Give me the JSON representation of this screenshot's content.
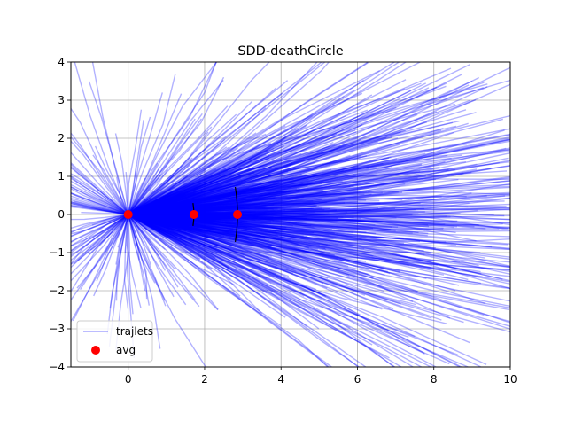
{
  "chart_data": {
    "type": "line",
    "title": "SDD-deathCircle",
    "xlabel": "",
    "ylabel": "",
    "xlim": [
      -1.5,
      10
    ],
    "ylim": [
      -4,
      4
    ],
    "xticks": [
      0,
      2,
      4,
      6,
      8,
      10
    ],
    "yticks": [
      -4,
      -3,
      -2,
      -1,
      0,
      1,
      2,
      3,
      4
    ],
    "grid": true,
    "legend": {
      "position": "lower-left",
      "entries": [
        "trajlets",
        "avg"
      ]
    },
    "colors": {
      "trajlets": "#0000ff",
      "avg": "#ff0000",
      "spread": "#000000"
    },
    "series": [
      {
        "name": "trajlets",
        "kind": "line-bundle",
        "origin": [
          0,
          0
        ],
        "sample_paths": [
          [
            [
              0,
              0
            ],
            [
              0.8,
              0.1
            ],
            [
              1.7,
              0.15
            ],
            [
              2.8,
              0.2
            ]
          ],
          [
            [
              0,
              0
            ],
            [
              1.0,
              0.6
            ],
            [
              2.2,
              1.5
            ],
            [
              3.6,
              2.8
            ]
          ],
          [
            [
              0,
              0
            ],
            [
              1.1,
              -0.5
            ],
            [
              2.3,
              -1.4
            ],
            [
              3.5,
              -2.6
            ]
          ],
          [
            [
              0,
              0
            ],
            [
              2.5,
              0.2
            ],
            [
              5.5,
              0.5
            ],
            [
              9.5,
              1.2
            ]
          ],
          [
            [
              0,
              0
            ],
            [
              2.8,
              -0.3
            ],
            [
              6.0,
              -0.8
            ],
            [
              9.8,
              -1.7
            ]
          ],
          [
            [
              0,
              0
            ],
            [
              -0.5,
              1.2
            ],
            [
              -1.0,
              2.6
            ],
            [
              -1.4,
              4.0
            ]
          ],
          [
            [
              0,
              0
            ],
            [
              -0.6,
              -0.4
            ],
            [
              -1.2,
              -0.9
            ],
            [
              -1.5,
              -1.3
            ]
          ],
          [
            [
              0,
              0
            ],
            [
              0.9,
              1.2
            ],
            [
              1.9,
              2.4
            ],
            [
              2.5,
              3.6
            ]
          ],
          [
            [
              0,
              0
            ],
            [
              3.5,
              1.0
            ],
            [
              6.8,
              2.5
            ],
            [
              9.0,
              3.5
            ]
          ],
          [
            [
              0,
              0
            ],
            [
              2.0,
              -1.0
            ],
            [
              4.8,
              -2.2
            ],
            [
              7.5,
              -3.2
            ]
          ],
          [
            [
              0,
              0
            ],
            [
              1.5,
              0.0
            ],
            [
              3.2,
              0.05
            ],
            [
              6.0,
              0.1
            ],
            [
              10.0,
              0.15
            ]
          ],
          [
            [
              0,
              0
            ],
            [
              1.2,
              2.0
            ],
            [
              2.0,
              3.2
            ],
            [
              2.3,
              4.0
            ]
          ]
        ]
      },
      {
        "name": "avg",
        "x": [
          0,
          1.72,
          2.86
        ],
        "y": [
          0,
          0,
          0
        ]
      }
    ],
    "spread_markers": [
      {
        "x": 1.72,
        "y_range": [
          -0.3,
          0.3
        ]
      },
      {
        "x": 2.86,
        "y_range": [
          -0.72,
          0.72
        ]
      }
    ]
  }
}
